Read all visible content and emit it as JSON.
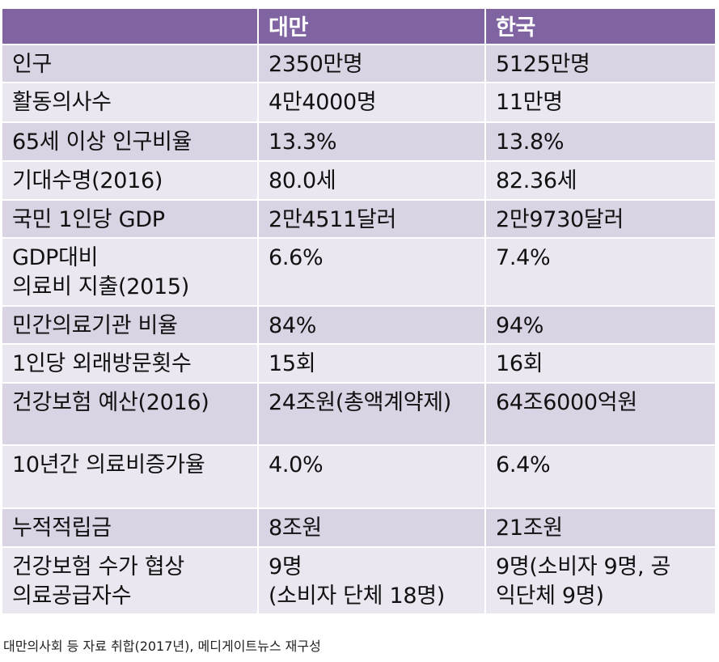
{
  "table": {
    "headers": [
      "",
      "대만",
      "한국"
    ],
    "rows": [
      [
        "인구",
        "2350만명",
        "5125만명"
      ],
      [
        "활동의사수",
        "4만4000명",
        "11만명"
      ],
      [
        "65세 이상 인구비율",
        "13.3%",
        "13.8%"
      ],
      [
        "기대수명(2016)",
        "80.0세",
        "82.36세"
      ],
      [
        "국민 1인당 GDP",
        "2만4511달러",
        "2만9730달러"
      ],
      [
        "GDP대비\n의료비 지출(2015)",
        "6.6%",
        "7.4%"
      ],
      [
        "민간의료기관 비율",
        "84%",
        "94%"
      ],
      [
        "1인당 외래방문횟수",
        "15회",
        "16회"
      ],
      [
        "건강보험 예산(2016)",
        "24조원(총액계약제)",
        "64조6000억원"
      ],
      [
        "10년간 의료비증가율",
        "4.0%",
        "6.4%"
      ],
      [
        "누적적립금",
        "8조원",
        "21조원"
      ],
      [
        "건강보험 수가 협상\n의료공급자수",
        "9명\n(소비자 단체 18명)",
        "9명(소비자 9명, 공\n익단체 9명)"
      ]
    ]
  },
  "caption": "대만의사회 등 자료 취합(2017년), 메디게이트뉴스 재구성",
  "colors": {
    "header_bg": "#8064a2",
    "row_odd_bg": "#d9d3e3",
    "row_even_bg": "#ebe7f0"
  }
}
